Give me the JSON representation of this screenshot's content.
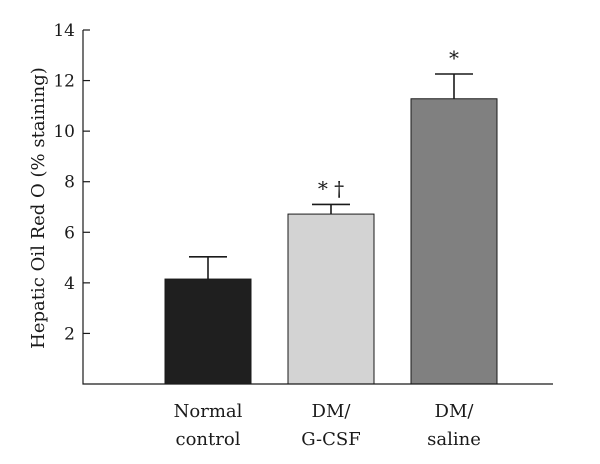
{
  "chart_data": {
    "type": "bar",
    "title": "",
    "xlabel": "",
    "ylabel": "Hepatic Oil Red O (% staining)",
    "ylim": [
      0,
      14
    ],
    "yticks": [
      2,
      4,
      6,
      8,
      10,
      12,
      14
    ],
    "grid": false,
    "categories": [
      [
        "Normal",
        "control"
      ],
      [
        "DM/",
        "G-CSF"
      ],
      [
        "DM/",
        "saline"
      ]
    ],
    "values": [
      4.15,
      6.72,
      11.28
    ],
    "errors": [
      0.88,
      0.38,
      0.98
    ],
    "colors": [
      "#1f1f1f",
      "#d3d3d3",
      "#808080"
    ],
    "annotations": [
      "",
      "* †",
      "*"
    ]
  }
}
